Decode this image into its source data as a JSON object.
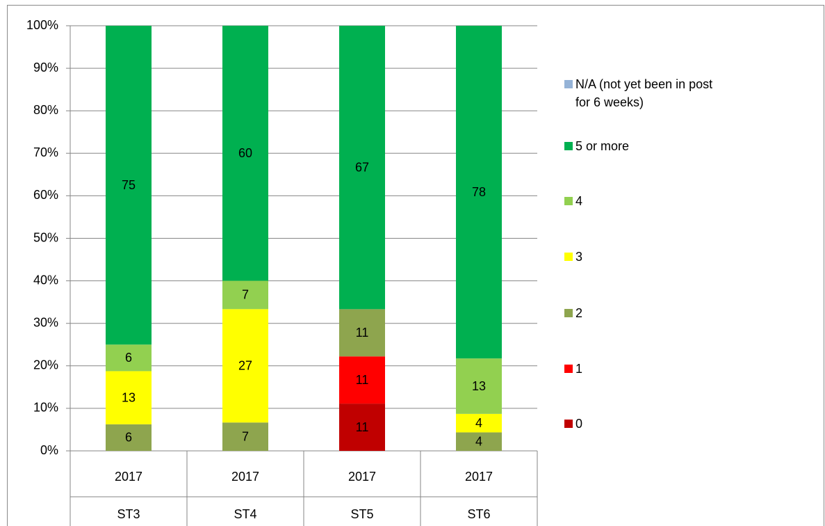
{
  "chart_data": {
    "type": "stacked_bar_100",
    "categories": [
      "2017",
      "2017",
      "2017",
      "2017"
    ],
    "groups": [
      "ST3",
      "ST4",
      "ST5",
      "ST6"
    ],
    "series": [
      {
        "name": "0",
        "color": "#c00000",
        "values": [
          null,
          null,
          11.11,
          null
        ],
        "value_labels": [
          null,
          null,
          "11",
          null
        ]
      },
      {
        "name": "1",
        "color": "#ff0000",
        "values": [
          null,
          null,
          11.11,
          null
        ],
        "value_labels": [
          null,
          null,
          "11",
          null
        ]
      },
      {
        "name": "2",
        "color": "#8ea54e",
        "values": [
          6.25,
          6.67,
          11.11,
          4.35
        ],
        "value_labels": [
          "6",
          "7",
          "11",
          "4"
        ]
      },
      {
        "name": "3",
        "color": "#ffff00",
        "values": [
          12.5,
          26.67,
          null,
          4.35
        ],
        "value_labels": [
          "13",
          "27",
          null,
          "4"
        ]
      },
      {
        "name": "4",
        "color": "#92d050",
        "values": [
          6.25,
          6.67,
          null,
          13.04
        ],
        "value_labels": [
          "6",
          "7",
          null,
          "13"
        ]
      },
      {
        "name": "5 or more",
        "color": "#00b050",
        "values": [
          75,
          60,
          66.67,
          78.26
        ],
        "value_labels": [
          "75",
          "60",
          "67",
          "78"
        ]
      },
      {
        "name": "N/A (not yet been in post for 6 weeks)",
        "color": "#95b3d7",
        "values": [
          null,
          null,
          null,
          null
        ],
        "value_labels": [
          null,
          null,
          null,
          null
        ]
      }
    ],
    "ylim": [
      0,
      100
    ],
    "yticks": [
      {
        "value": 0,
        "label": "0%"
      },
      {
        "value": 10,
        "label": "10%"
      },
      {
        "value": 20,
        "label": "20%"
      },
      {
        "value": 30,
        "label": "30%"
      },
      {
        "value": 40,
        "label": "40%"
      },
      {
        "value": 50,
        "label": "50%"
      },
      {
        "value": 60,
        "label": "60%"
      },
      {
        "value": 70,
        "label": "70%"
      },
      {
        "value": 80,
        "label": "80%"
      },
      {
        "value": 90,
        "label": "90%"
      },
      {
        "value": 100,
        "label": "100%"
      }
    ],
    "grid": true,
    "legend": "right"
  }
}
